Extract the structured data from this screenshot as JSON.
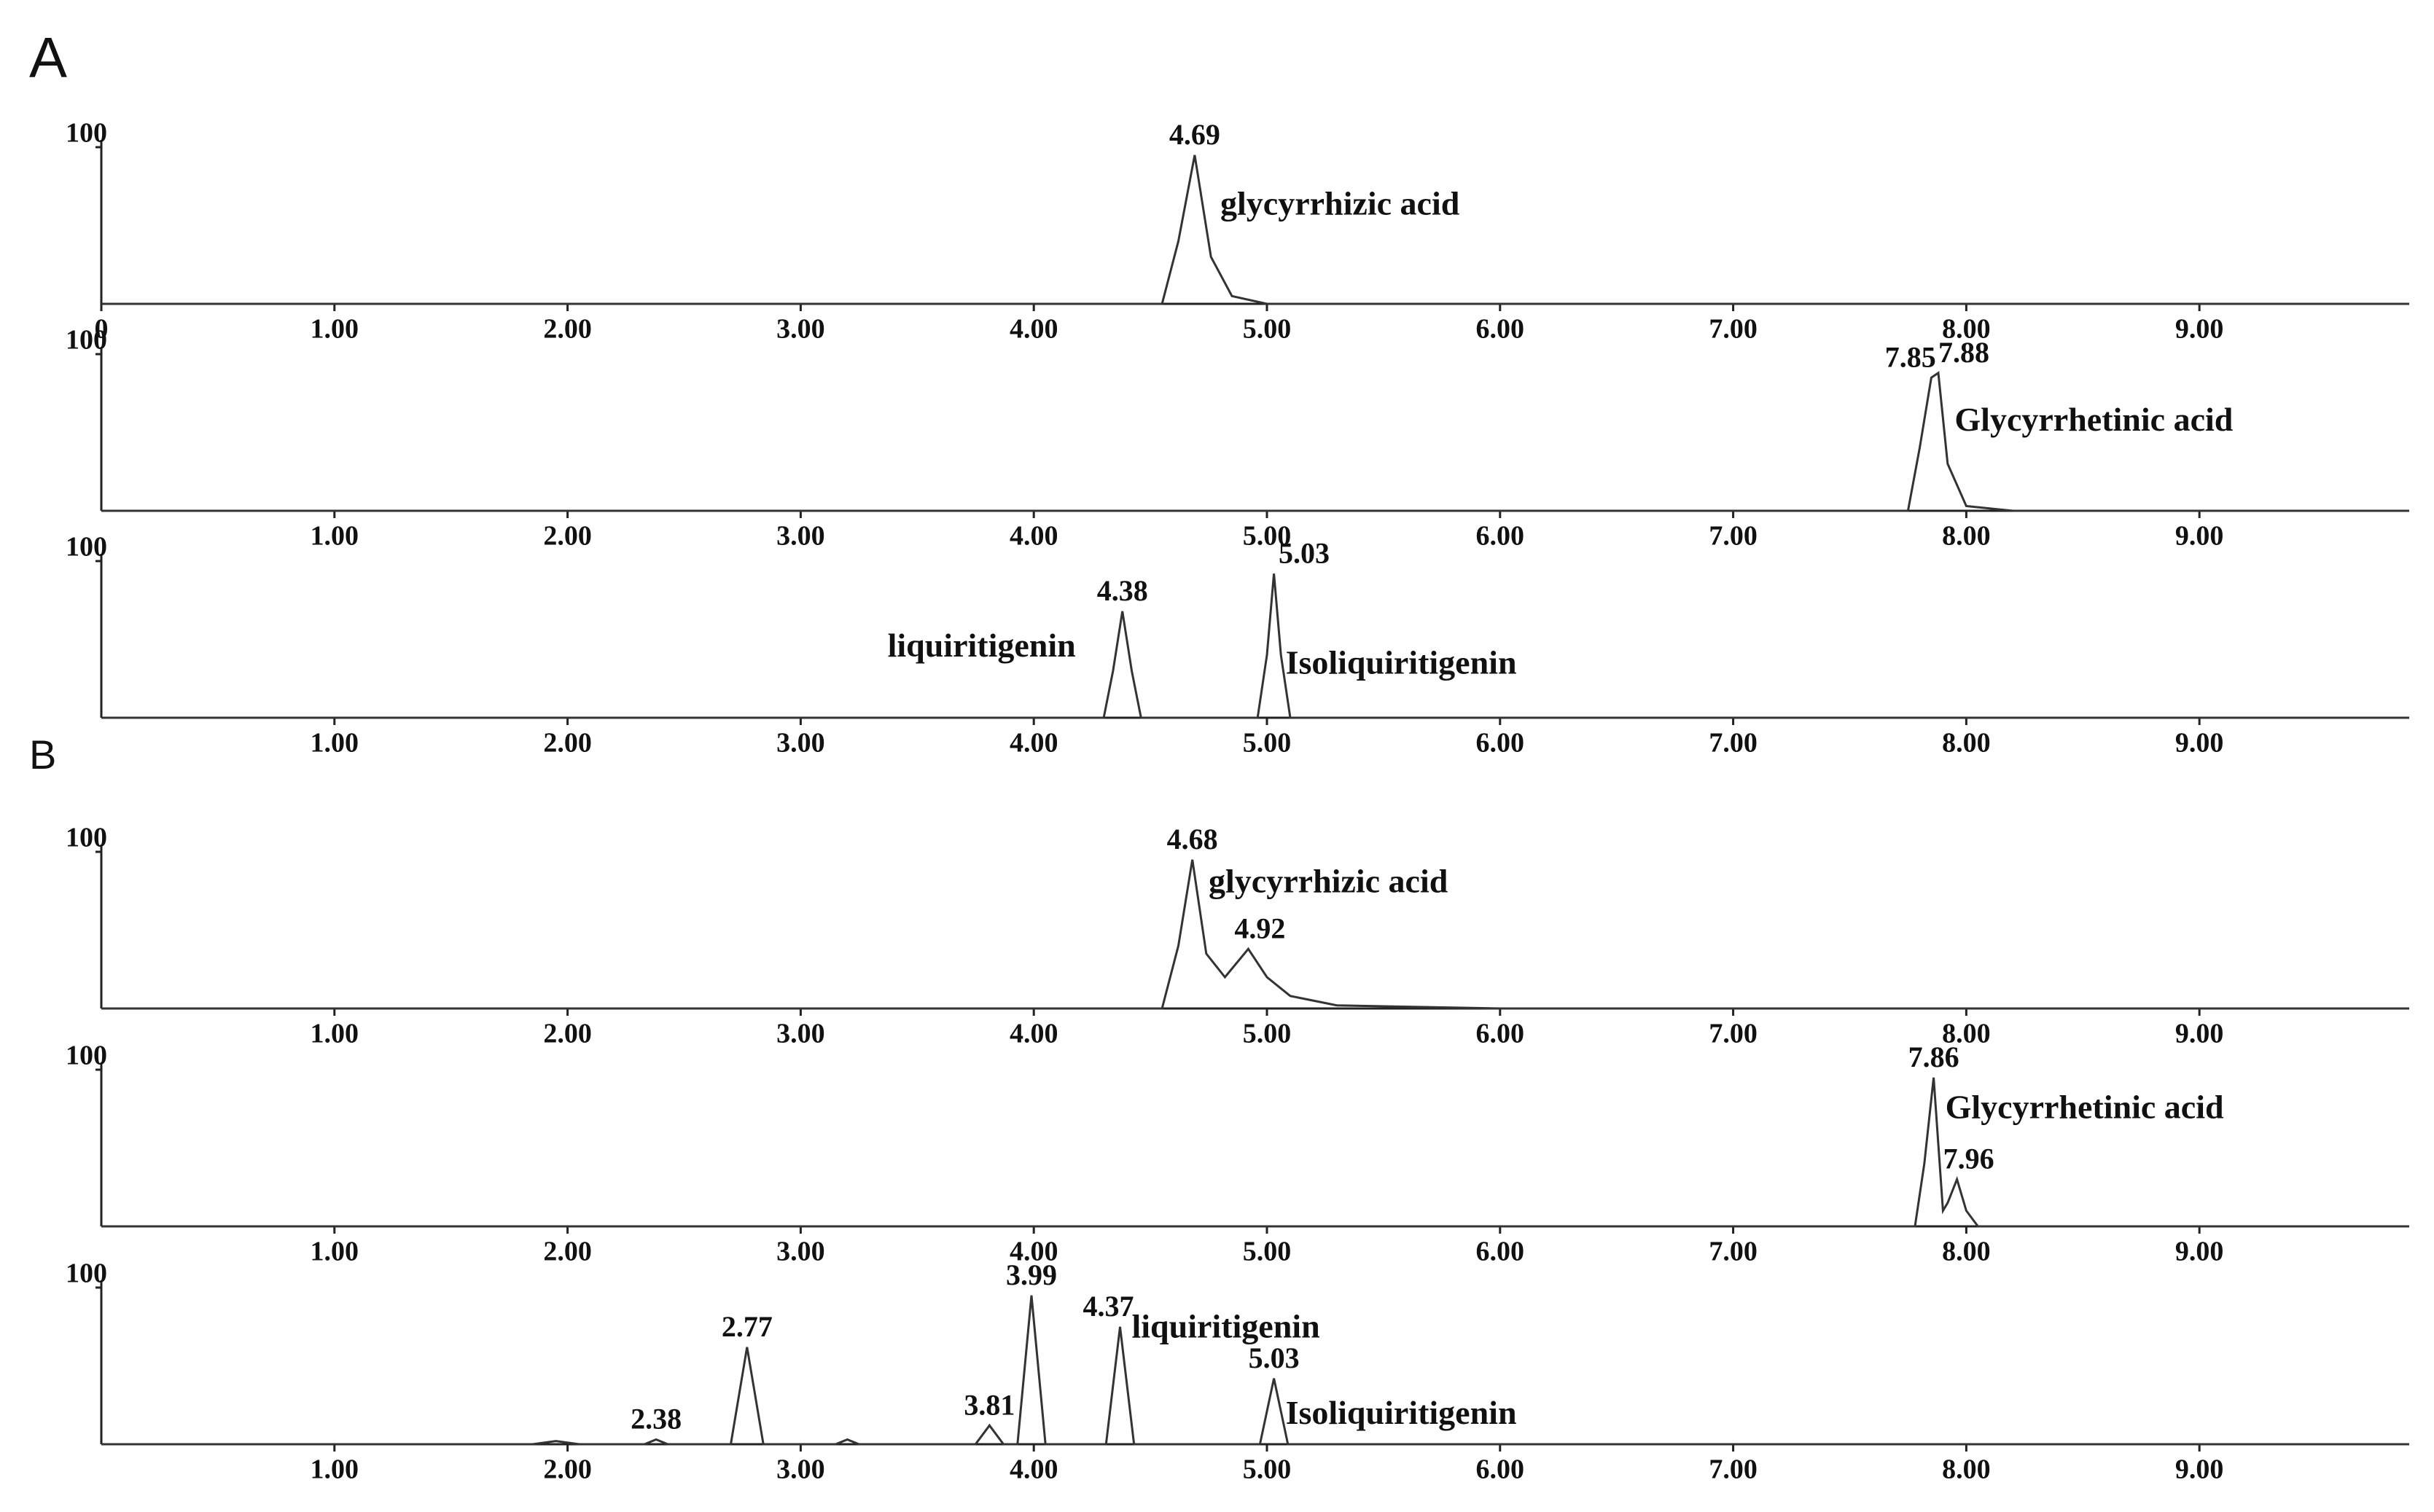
{
  "figure_labels": [
    "A",
    "B"
  ],
  "chart_data": [
    {
      "type": "line",
      "xlim": [
        0,
        9.9
      ],
      "ylim": [
        0,
        100
      ],
      "yticks": [
        100
      ],
      "xticks": [
        0,
        {
          "value": 1,
          "label": "1.00"
        },
        {
          "value": 2,
          "label": "2.00"
        },
        {
          "value": 3,
          "label": "3.00"
        },
        {
          "value": 4,
          "label": "4.00"
        },
        {
          "value": 5,
          "label": "5.00"
        },
        {
          "value": 6,
          "label": "6.00"
        },
        {
          "value": 7,
          "label": "7.00"
        },
        {
          "value": 8,
          "label": "8.00"
        },
        {
          "value": 9,
          "label": "9.00"
        }
      ],
      "x": [
        0,
        4.55,
        4.62,
        4.69,
        4.76,
        4.85,
        5.0,
        9.9
      ],
      "values": [
        0,
        0,
        40,
        95,
        30,
        5,
        0,
        0
      ],
      "peaks": [
        4.69
      ],
      "compounds": [
        "glycyrrhizic acid"
      ],
      "color": "#333333"
    },
    {
      "type": "line",
      "xlim": [
        0,
        9.9
      ],
      "ylim": [
        0,
        100
      ],
      "yticks": [
        100
      ],
      "xticks": [
        {
          "value": 1,
          "label": "1.00"
        },
        {
          "value": 2,
          "label": "2.00"
        },
        {
          "value": 3,
          "label": "3.00"
        },
        {
          "value": 4,
          "label": "4.00"
        },
        {
          "value": 5,
          "label": "5.00"
        },
        {
          "value": 6,
          "label": "6.00"
        },
        {
          "value": 7,
          "label": "7.00"
        },
        {
          "value": 8,
          "label": "8.00"
        },
        {
          "value": 9,
          "label": "9.00"
        }
      ],
      "x": [
        0,
        7.75,
        7.8,
        7.85,
        7.88,
        7.92,
        8.0,
        8.2,
        9.9
      ],
      "values": [
        0,
        0,
        40,
        85,
        88,
        30,
        3,
        0,
        0
      ],
      "peaks": [
        7.85,
        7.88
      ],
      "compounds": [
        "Glycyrrhetinic  acid"
      ],
      "color": "#333333"
    },
    {
      "type": "line",
      "xlim": [
        0,
        9.9
      ],
      "ylim": [
        0,
        100
      ],
      "yticks": [
        100
      ],
      "xticks": [
        {
          "value": 1,
          "label": "1.00"
        },
        {
          "value": 2,
          "label": "2.00"
        },
        {
          "value": 3,
          "label": "3.00"
        },
        {
          "value": 4,
          "label": "4.00"
        },
        {
          "value": 5,
          "label": "5.00"
        },
        {
          "value": 6,
          "label": "6.00"
        },
        {
          "value": 7,
          "label": "7.00"
        },
        {
          "value": 8,
          "label": "8.00"
        },
        {
          "value": 9,
          "label": "9.00"
        }
      ],
      "x": [
        0,
        4.3,
        4.34,
        4.38,
        4.42,
        4.46,
        4.96,
        5.0,
        5.03,
        5.06,
        5.1,
        9.9
      ],
      "values": [
        0,
        0,
        30,
        68,
        30,
        0,
        0,
        40,
        92,
        40,
        0,
        0
      ],
      "peaks": [
        4.38,
        5.03
      ],
      "compounds": [
        "liquiritigenin",
        "Isoliquiritigenin"
      ],
      "color": "#333333"
    },
    {
      "type": "line",
      "xlim": [
        0,
        9.9
      ],
      "ylim": [
        0,
        100
      ],
      "yticks": [
        100
      ],
      "xticks": [
        {
          "value": 1,
          "label": "1.00"
        },
        {
          "value": 2,
          "label": "2.00"
        },
        {
          "value": 3,
          "label": "3.00"
        },
        {
          "value": 4,
          "label": "4.00"
        },
        {
          "value": 5,
          "label": "5.00"
        },
        {
          "value": 6,
          "label": "6.00"
        },
        {
          "value": 7,
          "label": "7.00"
        },
        {
          "value": 8,
          "label": "8.00"
        },
        {
          "value": 9,
          "label": "9.00"
        }
      ],
      "x": [
        0,
        4.55,
        4.62,
        4.68,
        4.74,
        4.82,
        4.92,
        5.0,
        5.1,
        5.3,
        6.0,
        9.9
      ],
      "values": [
        0,
        0,
        40,
        95,
        35,
        20,
        38,
        20,
        8,
        2,
        0,
        0
      ],
      "peaks": [
        4.68,
        4.92
      ],
      "compounds": [
        "glycyrrhizic acid"
      ],
      "color": "#333333"
    },
    {
      "type": "line",
      "xlim": [
        0,
        9.9
      ],
      "ylim": [
        0,
        100
      ],
      "yticks": [
        100
      ],
      "xticks": [
        {
          "value": 1,
          "label": "1.00"
        },
        {
          "value": 2,
          "label": "2.00"
        },
        {
          "value": 3,
          "label": "3.00"
        },
        {
          "value": 4,
          "label": "4.00"
        },
        {
          "value": 5,
          "label": "5.00"
        },
        {
          "value": 6,
          "label": "6.00"
        },
        {
          "value": 7,
          "label": "7.00"
        },
        {
          "value": 8,
          "label": "8.00"
        },
        {
          "value": 9,
          "label": "9.00"
        }
      ],
      "x": [
        0,
        7.78,
        7.82,
        7.86,
        7.9,
        7.92,
        7.96,
        8.0,
        8.05,
        9.9
      ],
      "values": [
        0,
        0,
        40,
        95,
        10,
        15,
        30,
        10,
        0,
        0
      ],
      "peaks": [
        7.86,
        7.96
      ],
      "compounds": [
        "Glycyrrhetinic  acid"
      ],
      "color": "#333333"
    },
    {
      "type": "line",
      "xlim": [
        0,
        9.9
      ],
      "ylim": [
        0,
        100
      ],
      "yticks": [
        100
      ],
      "xticks": [
        {
          "value": 1,
          "label": "1.00"
        },
        {
          "value": 2,
          "label": "2.00"
        },
        {
          "value": 3,
          "label": "3.00"
        },
        {
          "value": 4,
          "label": "4.00"
        },
        {
          "value": 5,
          "label": "5.00"
        },
        {
          "value": 6,
          "label": "6.00"
        },
        {
          "value": 7,
          "label": "7.00"
        },
        {
          "value": 8,
          "label": "8.00"
        },
        {
          "value": 9,
          "label": "9.00"
        }
      ],
      "x": [
        0,
        1.85,
        1.95,
        2.05,
        2.33,
        2.38,
        2.43,
        2.7,
        2.77,
        2.84,
        3.15,
        3.2,
        3.25,
        3.75,
        3.81,
        3.87,
        3.93,
        3.99,
        4.05,
        4.31,
        4.37,
        4.43,
        4.97,
        5.03,
        5.09,
        9.9
      ],
      "values": [
        0,
        0,
        2,
        0,
        0,
        3,
        0,
        0,
        62,
        0,
        0,
        3,
        0,
        0,
        12,
        0,
        0,
        95,
        0,
        0,
        75,
        0,
        0,
        42,
        0,
        0
      ],
      "peaks": [
        2.38,
        2.77,
        3.81,
        3.99,
        4.37,
        5.03
      ],
      "compounds": [
        "liquiritigenin",
        "Isoliquiritigenin"
      ],
      "color": "#333333"
    }
  ]
}
